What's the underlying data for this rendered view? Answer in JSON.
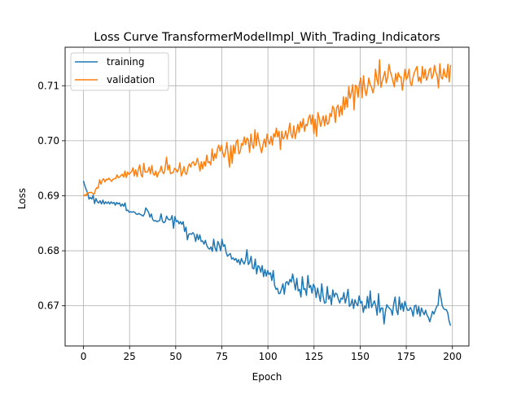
{
  "chart_data": {
    "type": "line",
    "title": "Loss Curve TransformerModelImpl_With_Trading_Indicators",
    "xlabel": "Epoch",
    "ylabel": "Loss",
    "xlim": [
      -9.95,
      208.95
    ],
    "ylim": [
      0.6627,
      0.717
    ],
    "xticks": [
      0,
      25,
      50,
      75,
      100,
      125,
      150,
      175,
      200
    ],
    "yticks": [
      0.67,
      0.68,
      0.69,
      0.7,
      0.71
    ],
    "ytick_labels": [
      "0.67",
      "0.68",
      "0.69",
      "0.70",
      "0.71"
    ],
    "grid": true,
    "legend_position": "upper left",
    "series": [
      {
        "name": "training",
        "color": "#1f77b4",
        "values": [
          0.6927,
          0.6918,
          0.6911,
          0.6905,
          0.6894,
          0.6897,
          0.6894,
          0.6901,
          0.6886,
          0.6895,
          0.6889,
          0.6887,
          0.6891,
          0.6885,
          0.6892,
          0.6885,
          0.6889,
          0.6886,
          0.6889,
          0.6885,
          0.6889,
          0.6886,
          0.6888,
          0.6883,
          0.6888,
          0.6885,
          0.6887,
          0.6881,
          0.6885,
          0.6881,
          0.6887,
          0.6873,
          0.6874,
          0.687,
          0.6871,
          0.687,
          0.6871,
          0.687,
          0.6867,
          0.6866,
          0.6868,
          0.6866,
          0.6865,
          0.6863,
          0.6867,
          0.6878,
          0.6874,
          0.687,
          0.6861,
          0.6867,
          0.6857,
          0.6854,
          0.6855,
          0.6853,
          0.6854,
          0.6855,
          0.6867,
          0.6854,
          0.6851,
          0.6853,
          0.6863,
          0.6858,
          0.6856,
          0.6857,
          0.6864,
          0.6841,
          0.6862,
          0.6853,
          0.6855,
          0.6849,
          0.6853,
          0.6848,
          0.6853,
          0.6835,
          0.6843,
          0.682,
          0.683,
          0.6831,
          0.683,
          0.6833,
          0.6829,
          0.6817,
          0.683,
          0.682,
          0.6829,
          0.6817,
          0.6818,
          0.6812,
          0.6819,
          0.681,
          0.6805,
          0.6803,
          0.6807,
          0.6799,
          0.6821,
          0.6805,
          0.6799,
          0.6817,
          0.6811,
          0.68,
          0.6821,
          0.6808,
          0.6811,
          0.6797,
          0.679,
          0.6793,
          0.6795,
          0.6785,
          0.6787,
          0.6783,
          0.6786,
          0.6779,
          0.6784,
          0.6775,
          0.6786,
          0.678,
          0.6776,
          0.6783,
          0.6802,
          0.6775,
          0.6779,
          0.679,
          0.6769,
          0.6767,
          0.6785,
          0.6758,
          0.6773,
          0.6771,
          0.6761,
          0.6773,
          0.6753,
          0.6766,
          0.6754,
          0.6764,
          0.6757,
          0.676,
          0.6746,
          0.6764,
          0.6737,
          0.673,
          0.6732,
          0.6722,
          0.6723,
          0.6731,
          0.674,
          0.6721,
          0.6742,
          0.6744,
          0.6738,
          0.6748,
          0.6743,
          0.6758,
          0.6744,
          0.6729,
          0.675,
          0.6727,
          0.673,
          0.6716,
          0.6753,
          0.673,
          0.6731,
          0.6719,
          0.6755,
          0.6733,
          0.6737,
          0.6723,
          0.6739,
          0.6734,
          0.6715,
          0.6732,
          0.672,
          0.6708,
          0.674,
          0.6718,
          0.6705,
          0.6706,
          0.6735,
          0.6712,
          0.6719,
          0.6702,
          0.6729,
          0.6716,
          0.6723,
          0.6721,
          0.6712,
          0.6705,
          0.6714,
          0.6712,
          0.6724,
          0.6705,
          0.6716,
          0.673,
          0.6699,
          0.6702,
          0.6712,
          0.6695,
          0.6711,
          0.6704,
          0.67,
          0.6718,
          0.6705,
          0.6708,
          0.6688,
          0.67,
          0.6695,
          0.6717,
          0.6696,
          0.6727,
          0.6697,
          0.6703,
          0.6709,
          0.67,
          0.6683,
          0.6722,
          0.6688,
          0.6696,
          0.6696,
          0.6667,
          0.669,
          0.6702,
          0.6698,
          0.6695,
          0.6693,
          0.6683,
          0.6704,
          0.6716,
          0.6692,
          0.6684,
          0.6716,
          0.6693,
          0.6705,
          0.669,
          0.6708,
          0.6699,
          0.6692,
          0.6692,
          0.6697,
          0.6692,
          0.6681,
          0.67,
          0.6701,
          0.6685,
          0.6699,
          0.6681,
          0.6696,
          0.6689,
          0.6684,
          0.6692,
          0.6683,
          0.6679,
          0.6671,
          0.668,
          0.669,
          0.6685,
          0.6692,
          0.6699,
          0.6701,
          0.673,
          0.6716,
          0.67,
          0.6695,
          0.6693,
          0.6693,
          0.6687,
          0.6672,
          0.6664
        ]
      },
      {
        "name": "validation",
        "color": "#ff7f0e",
        "values": [
          0.6899,
          0.6902,
          0.69,
          0.6906,
          0.6905,
          0.6906,
          0.6906,
          0.6904,
          0.6903,
          0.6911,
          0.6915,
          0.6914,
          0.6929,
          0.6921,
          0.6928,
          0.6931,
          0.6925,
          0.693,
          0.6929,
          0.6932,
          0.6929,
          0.6926,
          0.693,
          0.6931,
          0.6931,
          0.6938,
          0.6933,
          0.6934,
          0.6937,
          0.6939,
          0.6934,
          0.6945,
          0.6933,
          0.6943,
          0.6939,
          0.6942,
          0.6944,
          0.6951,
          0.6936,
          0.6947,
          0.6935,
          0.6948,
          0.6956,
          0.6938,
          0.6934,
          0.6959,
          0.6943,
          0.6943,
          0.6944,
          0.6952,
          0.694,
          0.6955,
          0.694,
          0.6937,
          0.6945,
          0.6934,
          0.6942,
          0.6944,
          0.6954,
          0.6943,
          0.694,
          0.6952,
          0.697,
          0.6947,
          0.6956,
          0.694,
          0.6942,
          0.6942,
          0.695,
          0.6948,
          0.6943,
          0.6948,
          0.696,
          0.6936,
          0.6942,
          0.6953,
          0.6941,
          0.6939,
          0.6952,
          0.6958,
          0.6952,
          0.696,
          0.6962,
          0.6955,
          0.6958,
          0.6968,
          0.6958,
          0.6945,
          0.6962,
          0.6949,
          0.6962,
          0.6954,
          0.6974,
          0.696,
          0.6962,
          0.6956,
          0.6985,
          0.6964,
          0.6977,
          0.6968,
          0.6985,
          0.6992,
          0.6981,
          0.6992,
          0.6978,
          0.697,
          0.698,
          0.6997,
          0.6975,
          0.6952,
          0.6991,
          0.6959,
          0.6992,
          0.6977,
          0.6998,
          0.7002,
          0.6976,
          0.698,
          0.6995,
          0.6992,
          0.7007,
          0.6993,
          0.7005,
          0.7002,
          0.6979,
          0.7012,
          0.6992,
          0.6986,
          0.702,
          0.6991,
          0.7014,
          0.6998,
          0.6988,
          0.6978,
          0.6993,
          0.7003,
          0.6989,
          0.7012,
          0.6999,
          0.6994,
          0.7008,
          0.6992,
          0.7013,
          0.7007,
          0.7023,
          0.7007,
          0.7017,
          0.6984,
          0.7017,
          0.7003,
          0.7007,
          0.7018,
          0.7003,
          0.7016,
          0.7032,
          0.7011,
          0.7005,
          0.7027,
          0.7004,
          0.7016,
          0.703,
          0.7015,
          0.7035,
          0.7024,
          0.704,
          0.7017,
          0.703,
          0.7027,
          0.7041,
          0.7047,
          0.703,
          0.7047,
          0.7013,
          0.7039,
          0.7008,
          0.7051,
          0.7041,
          0.7026,
          0.7036,
          0.7045,
          0.7027,
          0.7046,
          0.703,
          0.7032,
          0.705,
          0.7044,
          0.7063,
          0.7058,
          0.7033,
          0.706,
          0.7065,
          0.7044,
          0.7063,
          0.7047,
          0.708,
          0.7057,
          0.7079,
          0.7061,
          0.7098,
          0.7077,
          0.7087,
          0.7102,
          0.7056,
          0.7101,
          0.7098,
          0.7079,
          0.7104,
          0.7114,
          0.7078,
          0.7118,
          0.7094,
          0.7082,
          0.7095,
          0.7114,
          0.7102,
          0.7097,
          0.7087,
          0.7096,
          0.713,
          0.7112,
          0.7102,
          0.7147,
          0.7097,
          0.7108,
          0.7117,
          0.7126,
          0.7105,
          0.7115,
          0.7139,
          0.7126,
          0.7118,
          0.7108,
          0.7098,
          0.7122,
          0.7107,
          0.7124,
          0.7116,
          0.7116,
          0.7092,
          0.711,
          0.713,
          0.7111,
          0.7117,
          0.713,
          0.7105,
          0.71,
          0.7115,
          0.7124,
          0.713,
          0.7135,
          0.7108,
          0.7116,
          0.7105,
          0.7135,
          0.7114,
          0.713,
          0.711,
          0.7116,
          0.7128,
          0.7132,
          0.7113,
          0.7119,
          0.7137,
          0.7125,
          0.7118,
          0.7096,
          0.714,
          0.7115,
          0.7112,
          0.7131,
          0.7118,
          0.7115,
          0.7139,
          0.7107,
          0.7138
        ]
      }
    ]
  }
}
